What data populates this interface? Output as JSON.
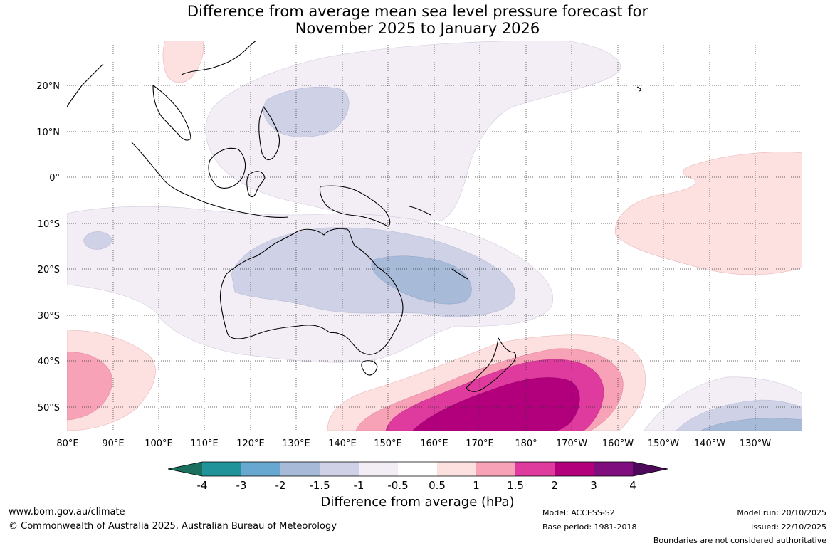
{
  "title": {
    "line1": "Difference from average mean sea level pressure forecast for",
    "line2": "November 2025 to January 2026"
  },
  "map": {
    "lat_labels": [
      "20°N",
      "10°N",
      "0°",
      "10°S",
      "20°S",
      "30°S",
      "40°S",
      "50°S"
    ],
    "lon_labels": [
      "80°E",
      "90°E",
      "100°E",
      "110°E",
      "120°E",
      "130°E",
      "140°E",
      "150°E",
      "160°E",
      "170°E",
      "180°",
      "170°W",
      "160°W",
      "150°W",
      "140°W",
      "130°W"
    ]
  },
  "legend": {
    "title": "Difference from average (hPa)",
    "ticks": [
      "-4",
      "-3",
      "-2",
      "-1.5",
      "-1",
      "-0.5",
      "0.5",
      "1",
      "1.5",
      "2",
      "3",
      "4"
    ],
    "colors": {
      "below_min": "#1a6f5f",
      "neg_4_3": "#1f9399",
      "neg_3_2": "#66a8d0",
      "neg_2_15": "#a7bbd9",
      "neg_15_1": "#cfd1e6",
      "neg_1_05": "#f3eef6",
      "neutral": "#ffffff",
      "pos_05_1": "#fde0e0",
      "pos_1_15": "#f8a2b8",
      "pos_15_2": "#df3a9d",
      "pos_2_3": "#b2007d",
      "pos_3_4": "#7f0d7e",
      "above_max": "#4d0a5a"
    }
  },
  "footer": {
    "url": "www.bom.gov.au/climate",
    "copyright": "© Commonwealth of Australia 2025, Australian Bureau of Meteorology",
    "model": "Model: ACCESS-S2",
    "base_period": "Base period: 1981-2018",
    "model_run": "Model run: 20/10/2025",
    "issued": "Issued: 22/10/2025",
    "disclaimer": "Boundaries are not considered authoritative"
  }
}
